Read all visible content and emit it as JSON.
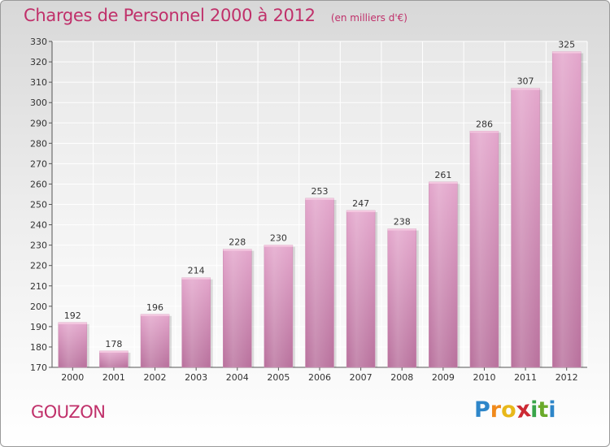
{
  "header": {
    "title": "Charges de Personnel 2000 à 2012",
    "subtitle": "(en milliers d'€)"
  },
  "footer": {
    "commune": "GOUZON",
    "logo_letters": [
      "P",
      "r",
      "o",
      "x",
      "i",
      "t",
      "i"
    ],
    "logo_colors": [
      "#2e86c9",
      "#f08a1c",
      "#e8b81a",
      "#cc2a34",
      "#3aa54a",
      "#6aaa2a",
      "#2e86c9"
    ]
  },
  "chart_data": {
    "type": "bar",
    "categories": [
      "2000",
      "2001",
      "2002",
      "2003",
      "2004",
      "2005",
      "2006",
      "2007",
      "2008",
      "2009",
      "2010",
      "2011",
      "2012"
    ],
    "values": [
      192,
      178,
      196,
      214,
      228,
      230,
      253,
      247,
      238,
      261,
      286,
      307,
      325
    ],
    "ylim": [
      170,
      330
    ],
    "yticks": [
      170,
      180,
      190,
      200,
      210,
      220,
      230,
      240,
      250,
      260,
      270,
      280,
      290,
      300,
      310,
      320,
      330
    ],
    "grid": true,
    "bar_color": "#d98fb8"
  }
}
